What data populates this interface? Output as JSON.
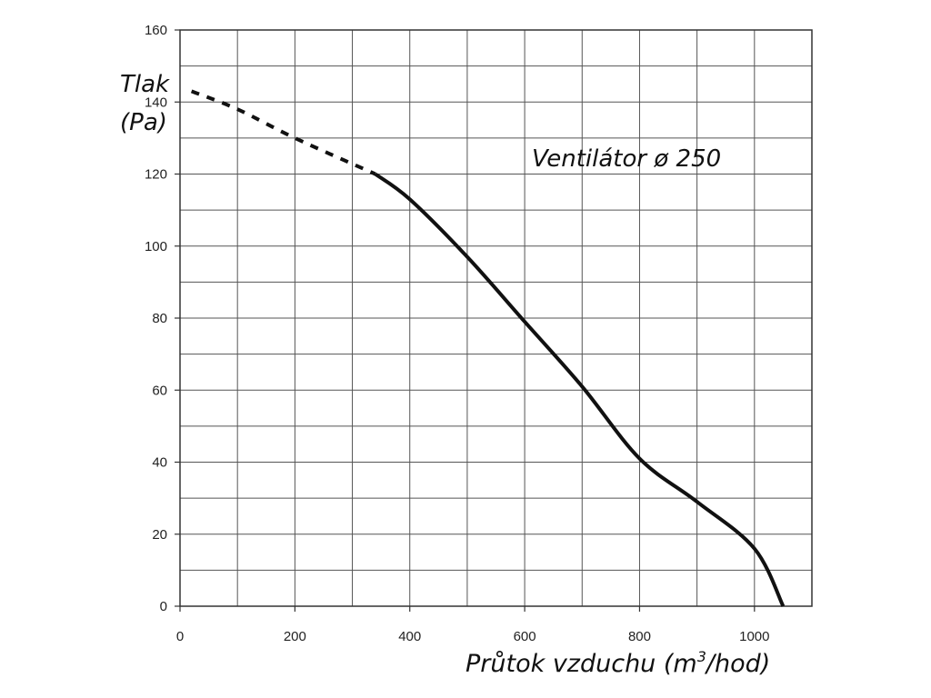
{
  "chart_data": {
    "type": "line",
    "ylabel": {
      "line1": "Tlak",
      "line2": "(Pa)"
    },
    "xlabel": {
      "before": "Průtok vzduchu (m",
      "sup": "3",
      "after": "/hod)"
    },
    "annotation": "Ventilátor ø 250",
    "xlim": [
      0,
      1100
    ],
    "ylim": [
      0,
      160
    ],
    "x_ticks": [
      "0",
      "200",
      "400",
      "600",
      "800",
      "1000"
    ],
    "x_tick_values": [
      0,
      200,
      400,
      600,
      800,
      1000
    ],
    "y_ticks": [
      "0",
      "20",
      "40",
      "60",
      "80",
      "100",
      "120",
      "140",
      "160"
    ],
    "y_tick_values": [
      0,
      20,
      40,
      60,
      80,
      100,
      120,
      140,
      160
    ],
    "grid": true,
    "series": [
      {
        "style": "dotted",
        "color": "#111111",
        "x": [
          20,
          100,
          200,
          340
        ],
        "y": [
          143,
          138,
          130,
          120
        ]
      },
      {
        "style": "solid",
        "color": "#111111",
        "x": [
          340,
          400,
          500,
          600,
          700,
          800,
          900,
          1000,
          1050
        ],
        "y": [
          120,
          113,
          97,
          79,
          61,
          41,
          29,
          16,
          0
        ]
      }
    ]
  }
}
